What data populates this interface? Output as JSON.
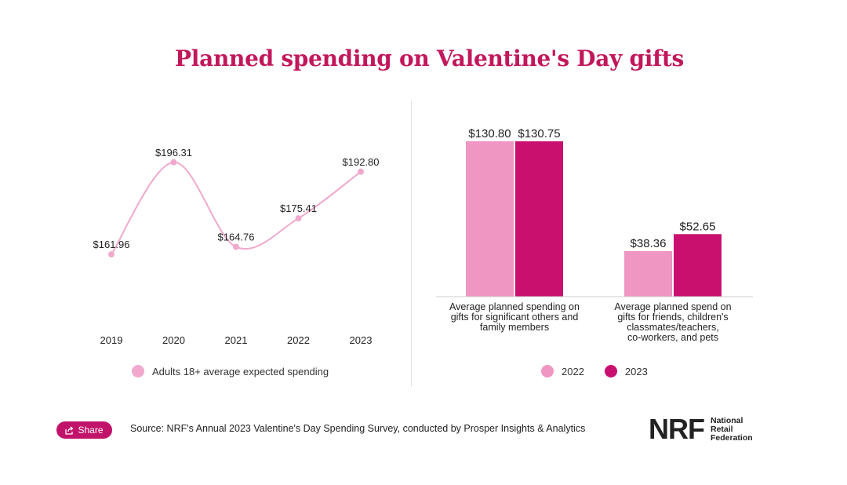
{
  "title": "Planned spending on Valentine's Day gifts",
  "colors": {
    "title": "#c2185b",
    "light_pink": "#ef96c3",
    "magenta": "#c9106f",
    "line": "#f0a9cc"
  },
  "chart_data": [
    {
      "type": "line",
      "title": "",
      "x": [
        "2019",
        "2020",
        "2021",
        "2022",
        "2023"
      ],
      "series": [
        {
          "name": "Adults 18+ average expected spending",
          "values": [
            161.96,
            196.31,
            164.76,
            175.41,
            192.8
          ],
          "labels": [
            "$161.96",
            "$196.31",
            "$164.76",
            "$175.41",
            "$192.80"
          ],
          "color": "#f0a9cc"
        }
      ],
      "ylim": [
        150,
        210
      ],
      "grid": false,
      "legend": "bottom"
    },
    {
      "type": "bar",
      "title": "",
      "categories": [
        [
          "Average planned spending on",
          "gifts for significant others and",
          "family members"
        ],
        [
          "Average planned spend on",
          "gifts for friends, children's",
          "classmates/teachers,",
          "co-workers, and pets"
        ]
      ],
      "series": [
        {
          "name": "2022",
          "values": [
            130.8,
            38.36
          ],
          "labels": [
            "$130.80",
            "$38.36"
          ],
          "color": "#ef96c3"
        },
        {
          "name": "2023",
          "values": [
            130.75,
            52.65
          ],
          "labels": [
            "$130.75",
            "$52.65"
          ],
          "color": "#c9106f"
        }
      ],
      "ylim": [
        0,
        160
      ],
      "grid": false,
      "legend": "bottom"
    }
  ],
  "footer": {
    "share_label": "Share",
    "source": "Source: NRF's Annual 2023 Valentine's Day Spending Survey, conducted by Prosper Insights & Analytics",
    "logo_mark": "NRF",
    "logo_words": [
      "National",
      "Retail",
      "Federation"
    ]
  }
}
